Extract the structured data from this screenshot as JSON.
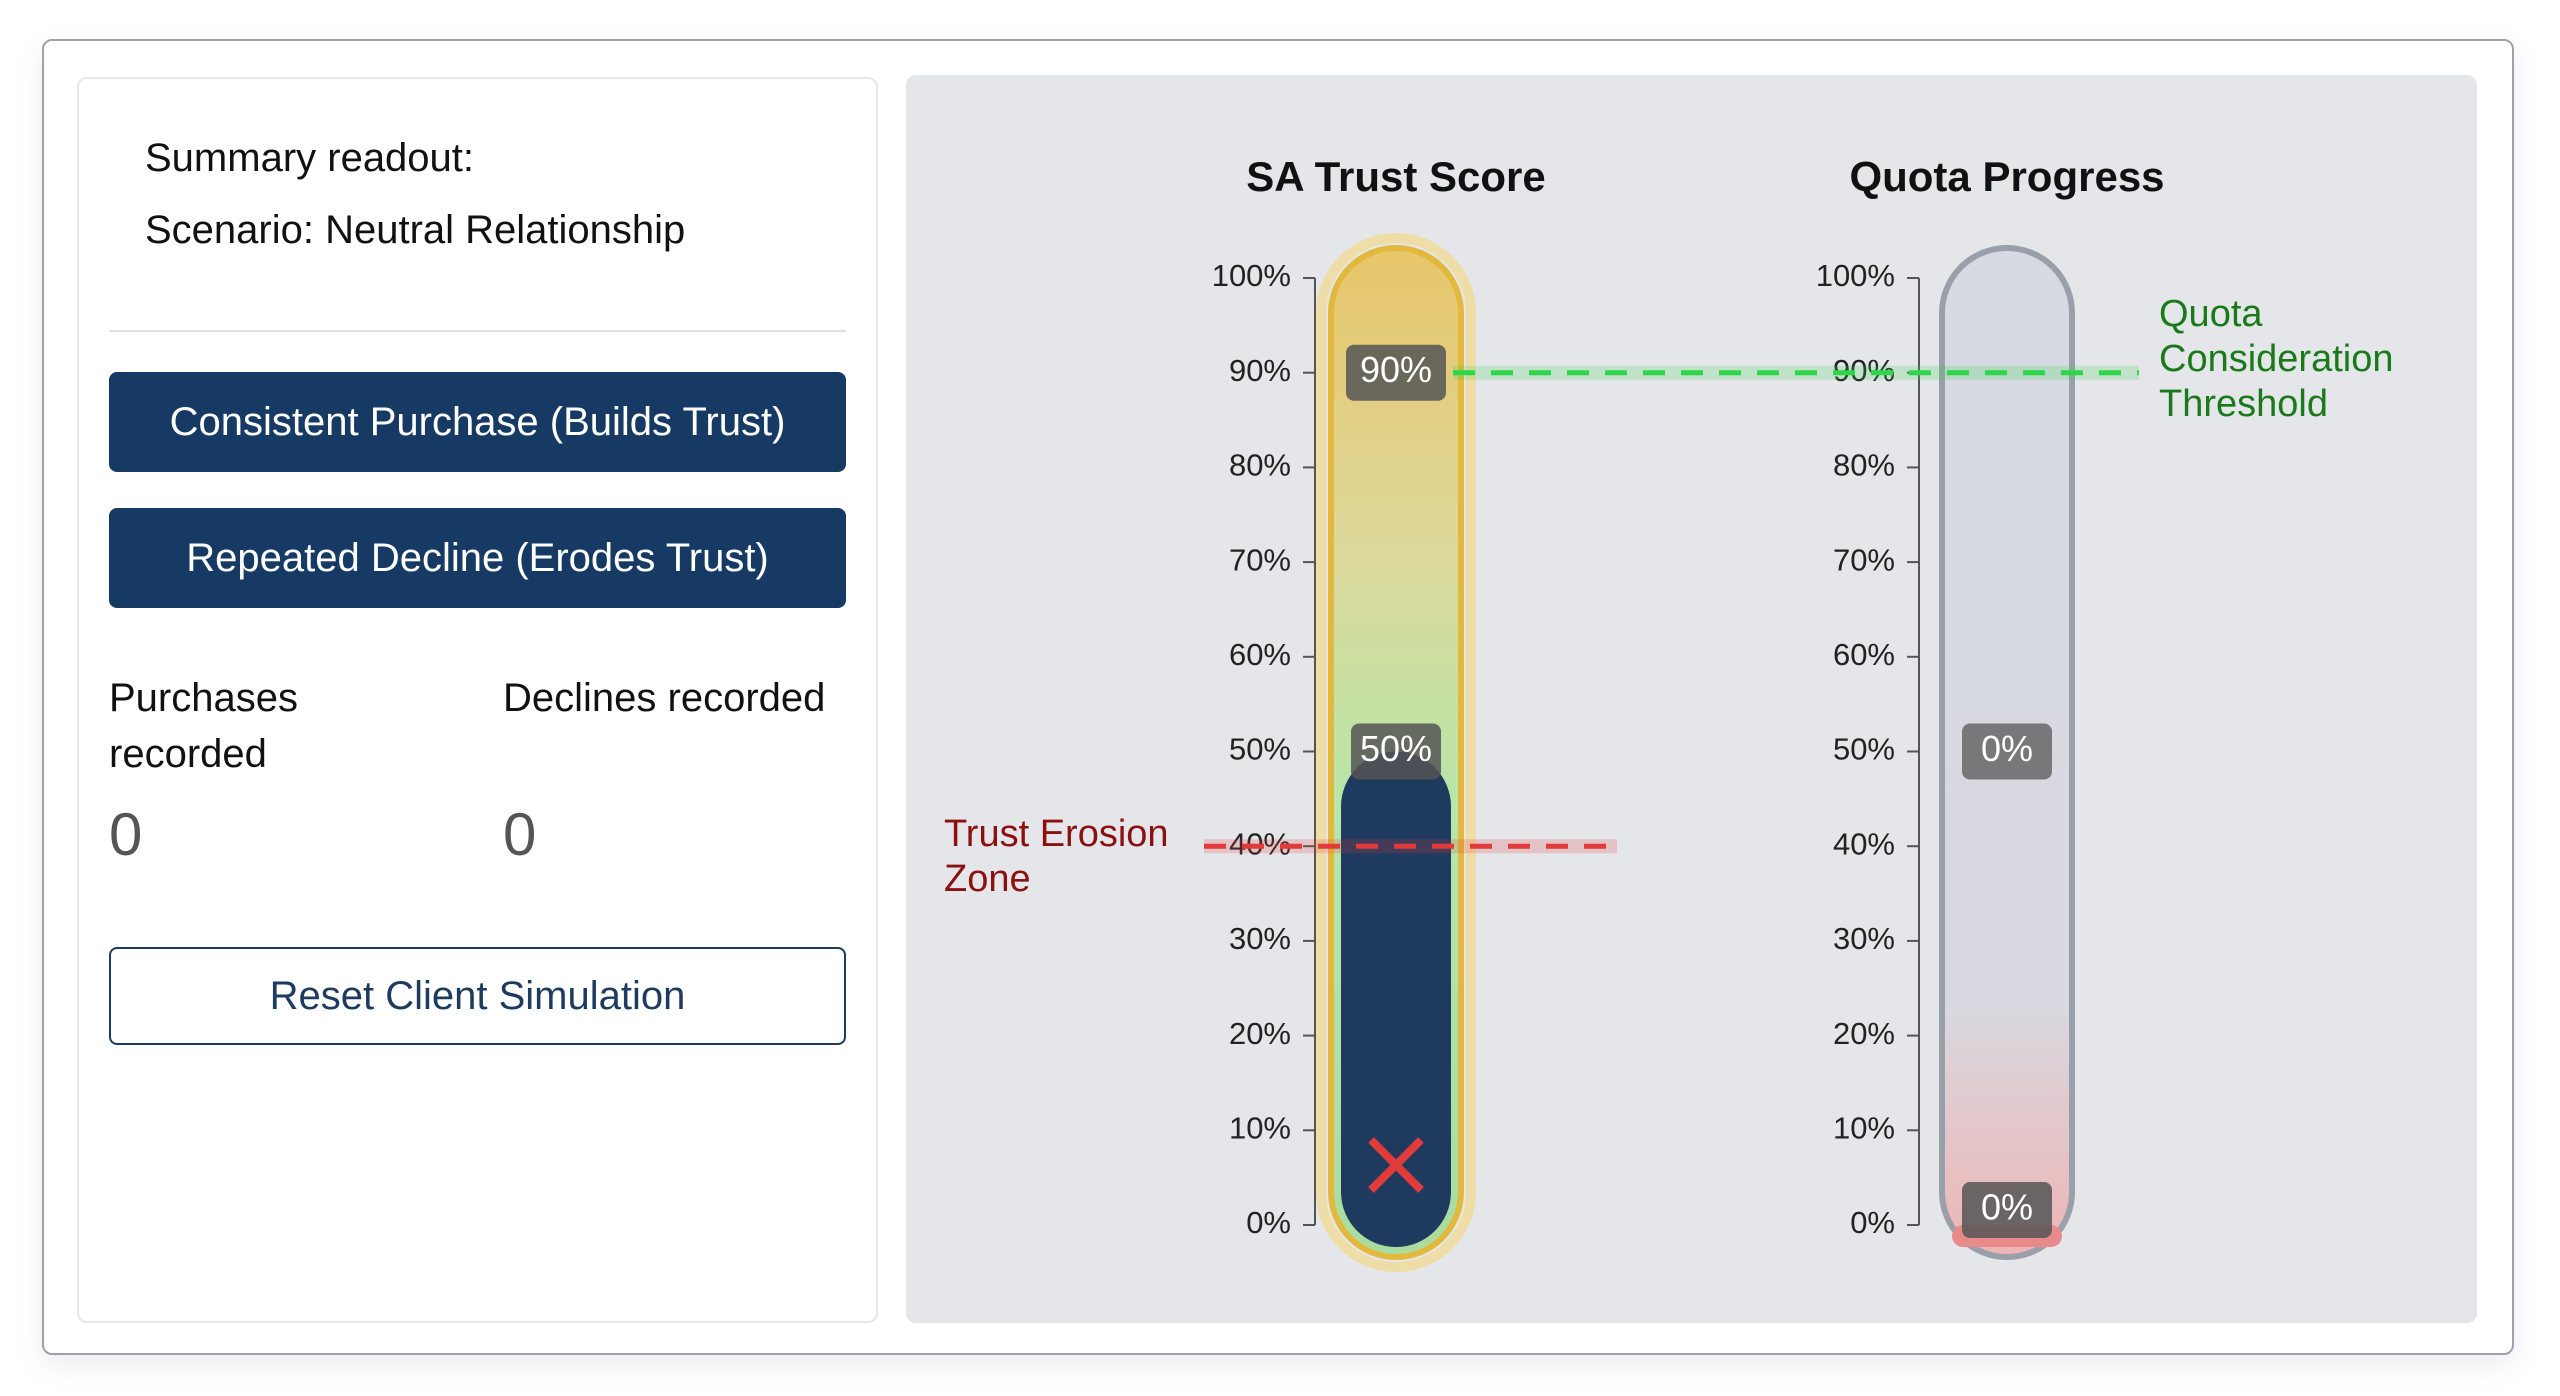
{
  "panel": {
    "summary_label": "Summary readout:",
    "scenario": "Scenario: Neutral Relationship",
    "buttons": [
      "Consistent Purchase (Builds Trust)",
      "Repeated Decline (Erodes Trust)"
    ],
    "counters": [
      {
        "label": "Purchases recorded",
        "value": 0
      },
      {
        "label": "Declines recorded",
        "value": 0
      }
    ],
    "reset": "Reset Client Simulation"
  },
  "gauges": [
    {
      "title": "SA Trust Score",
      "value": 50,
      "value_label": "50%",
      "color": "#1e3a5f",
      "ylim": [
        0,
        100
      ],
      "yticks": [
        {
          "value": 0,
          "label": "0%"
        },
        {
          "value": 10,
          "label": "10%"
        },
        {
          "value": 20,
          "label": "20%"
        },
        {
          "value": 30,
          "label": "30%"
        },
        {
          "value": 40,
          "label": "40%"
        },
        {
          "value": 50,
          "label": "50%"
        },
        {
          "value": 60,
          "label": "60%"
        },
        {
          "value": 70,
          "label": "70%"
        },
        {
          "value": 80,
          "label": "80%"
        },
        {
          "value": 90,
          "label": "90%"
        },
        {
          "value": 100,
          "label": "100%"
        }
      ]
    },
    {
      "title": "Quota Progress",
      "value": 0,
      "value_label": "0%",
      "center_label": "0%",
      "color": "#e88a8a",
      "ylim": [
        0,
        100
      ],
      "yticks": [
        {
          "value": 0,
          "label": "0%"
        },
        {
          "value": 10,
          "label": "10%"
        },
        {
          "value": 20,
          "label": "20%"
        },
        {
          "value": 30,
          "label": "30%"
        },
        {
          "value": 40,
          "label": "40%"
        },
        {
          "value": 50,
          "label": "50%"
        },
        {
          "value": 60,
          "label": "60%"
        },
        {
          "value": 70,
          "label": "70%"
        },
        {
          "value": 80,
          "label": "80%"
        },
        {
          "value": 90,
          "label": "90%"
        },
        {
          "value": 100,
          "label": "100%"
        }
      ]
    }
  ],
  "thresholds": [
    {
      "value": 90,
      "value_label": "90%",
      "label": "Quota Consideration Threshold",
      "color": "#2fd64a",
      "text_color": "#1a7a1a"
    },
    {
      "value": 40,
      "label": "Trust Erosion Zone",
      "color": "#e23b3b",
      "text_color": "#8b1010"
    }
  ]
}
